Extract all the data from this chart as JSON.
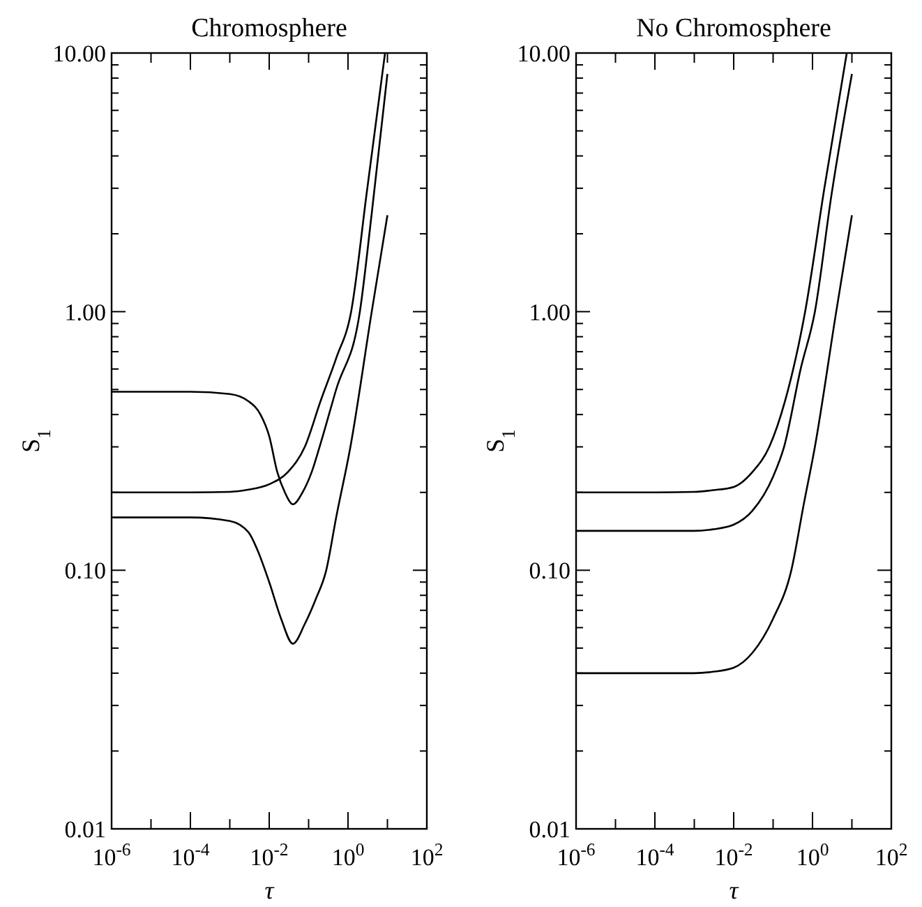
{
  "chart_data": [
    {
      "type": "line",
      "title": "Chromosphere",
      "xlabel": "τ",
      "ylabel": "S$_{1}$",
      "log": "xy",
      "xlim": [
        1e-06,
        100
      ],
      "ylim": [
        0.01,
        10
      ],
      "xticks": [
        {
          "value": 1e-06,
          "label": "10$^{-6}$"
        },
        {
          "value": 1e-05,
          "label": null
        },
        {
          "value": 0.0001,
          "label": "10$^{-4}$"
        },
        {
          "value": 0.001,
          "label": null
        },
        {
          "value": 0.01,
          "label": "10$^{-2}$"
        },
        {
          "value": 0.1,
          "label": null
        },
        {
          "value": 1,
          "label": "10$^{0}$"
        },
        {
          "value": 10,
          "label": null
        },
        {
          "value": 100,
          "label": "10$^{2}$"
        }
      ],
      "yticks": [
        {
          "value": 0.01,
          "label": "0.01"
        },
        {
          "value": 0.02,
          "label": null
        },
        {
          "value": 0.03,
          "label": null
        },
        {
          "value": 0.04,
          "label": null
        },
        {
          "value": 0.05,
          "label": null
        },
        {
          "value": 0.06,
          "label": null
        },
        {
          "value": 0.07,
          "label": null
        },
        {
          "value": 0.08,
          "label": null
        },
        {
          "value": 0.09,
          "label": null
        },
        {
          "value": 0.1,
          "label": "0.10"
        },
        {
          "value": 0.2,
          "label": null
        },
        {
          "value": 0.3,
          "label": null
        },
        {
          "value": 0.4,
          "label": null
        },
        {
          "value": 0.5,
          "label": null
        },
        {
          "value": 0.6,
          "label": null
        },
        {
          "value": 0.7,
          "label": null
        },
        {
          "value": 0.8,
          "label": null
        },
        {
          "value": 0.9,
          "label": null
        },
        {
          "value": 1,
          "label": "1.00"
        },
        {
          "value": 2,
          "label": null
        },
        {
          "value": 3,
          "label": null
        },
        {
          "value": 4,
          "label": null
        },
        {
          "value": 5,
          "label": null
        },
        {
          "value": 6,
          "label": null
        },
        {
          "value": 7,
          "label": null
        },
        {
          "value": 8,
          "label": null
        },
        {
          "value": 9,
          "label": null
        },
        {
          "value": 10,
          "label": "10.00"
        }
      ],
      "series": [
        {
          "color": "#000000",
          "x": [
            1e-06,
            0.0001,
            0.001,
            0.003,
            0.01,
            0.03,
            0.08,
            0.2,
            0.5,
            1.2,
            3,
            8.7
          ],
          "values": [
            0.2,
            0.2,
            0.201,
            0.205,
            0.215,
            0.24,
            0.3,
            0.45,
            0.66,
            1.0,
            2.9,
            10
          ]
        },
        {
          "color": "#000000",
          "x": [
            1e-06,
            0.0001,
            0.001,
            0.003,
            0.006,
            0.01,
            0.016,
            0.025,
            0.04,
            0.07,
            0.12,
            0.19,
            0.5,
            2,
            4,
            10
          ],
          "values": [
            0.49,
            0.49,
            0.48,
            0.45,
            0.4,
            0.33,
            0.24,
            0.2,
            0.18,
            0.2,
            0.24,
            0.3,
            0.5,
            1.0,
            2.4,
            8.3
          ]
        },
        {
          "color": "#000000",
          "x": [
            1e-06,
            0.0001,
            0.001,
            0.003,
            0.005,
            0.01,
            0.02,
            0.04,
            0.08,
            0.15,
            0.28,
            0.5,
            1.15,
            4,
            10
          ],
          "values": [
            0.16,
            0.16,
            0.155,
            0.14,
            0.12,
            0.09,
            0.065,
            0.052,
            0.062,
            0.077,
            0.1,
            0.16,
            0.3,
            1.0,
            2.36
          ]
        }
      ]
    },
    {
      "type": "line",
      "title": "No Chromosphere",
      "xlabel": "τ",
      "ylabel": "S$_{1}$",
      "log": "xy",
      "xlim": [
        1e-06,
        100
      ],
      "ylim": [
        0.01,
        10
      ],
      "xticks": [
        {
          "value": 1e-06,
          "label": "10$^{-6}$"
        },
        {
          "value": 1e-05,
          "label": null
        },
        {
          "value": 0.0001,
          "label": "10$^{-4}$"
        },
        {
          "value": 0.001,
          "label": null
        },
        {
          "value": 0.01,
          "label": "10$^{-2}$"
        },
        {
          "value": 0.1,
          "label": null
        },
        {
          "value": 1,
          "label": "10$^{0}$"
        },
        {
          "value": 10,
          "label": null
        },
        {
          "value": 100,
          "label": "10$^{2}$"
        }
      ],
      "yticks": [
        {
          "value": 0.01,
          "label": "0.01"
        },
        {
          "value": 0.02,
          "label": null
        },
        {
          "value": 0.03,
          "label": null
        },
        {
          "value": 0.04,
          "label": null
        },
        {
          "value": 0.05,
          "label": null
        },
        {
          "value": 0.06,
          "label": null
        },
        {
          "value": 0.07,
          "label": null
        },
        {
          "value": 0.08,
          "label": null
        },
        {
          "value": 0.09,
          "label": null
        },
        {
          "value": 0.1,
          "label": "0.10"
        },
        {
          "value": 0.2,
          "label": null
        },
        {
          "value": 0.3,
          "label": null
        },
        {
          "value": 0.4,
          "label": null
        },
        {
          "value": 0.5,
          "label": null
        },
        {
          "value": 0.6,
          "label": null
        },
        {
          "value": 0.7,
          "label": null
        },
        {
          "value": 0.8,
          "label": null
        },
        {
          "value": 0.9,
          "label": null
        },
        {
          "value": 1,
          "label": "1.00"
        },
        {
          "value": 2,
          "label": null
        },
        {
          "value": 3,
          "label": null
        },
        {
          "value": 4,
          "label": null
        },
        {
          "value": 5,
          "label": null
        },
        {
          "value": 6,
          "label": null
        },
        {
          "value": 7,
          "label": null
        },
        {
          "value": 8,
          "label": null
        },
        {
          "value": 9,
          "label": null
        },
        {
          "value": 10,
          "label": "10.00"
        }
      ],
      "series": [
        {
          "color": "#000000",
          "x": [
            1e-06,
            0.0001,
            0.001,
            0.003,
            0.01,
            0.03,
            0.08,
            0.2,
            0.65,
            2,
            7.4
          ],
          "values": [
            0.2,
            0.2,
            0.201,
            0.204,
            0.21,
            0.24,
            0.3,
            0.45,
            1.0,
            3,
            10
          ]
        },
        {
          "color": "#000000",
          "x": [
            1e-06,
            0.0001,
            0.001,
            0.003,
            0.01,
            0.03,
            0.1,
            0.19,
            0.5,
            1.15,
            3,
            10
          ],
          "values": [
            0.142,
            0.142,
            0.142,
            0.144,
            0.15,
            0.17,
            0.23,
            0.3,
            0.6,
            1.0,
            2.8,
            8.3
          ]
        },
        {
          "color": "#000000",
          "x": [
            1e-06,
            0.0001,
            0.001,
            0.003,
            0.01,
            0.03,
            0.1,
            0.29,
            0.6,
            1.15,
            4,
            10
          ],
          "values": [
            0.04,
            0.04,
            0.04,
            0.0405,
            0.042,
            0.048,
            0.065,
            0.1,
            0.18,
            0.3,
            1.0,
            2.36
          ]
        }
      ]
    }
  ]
}
